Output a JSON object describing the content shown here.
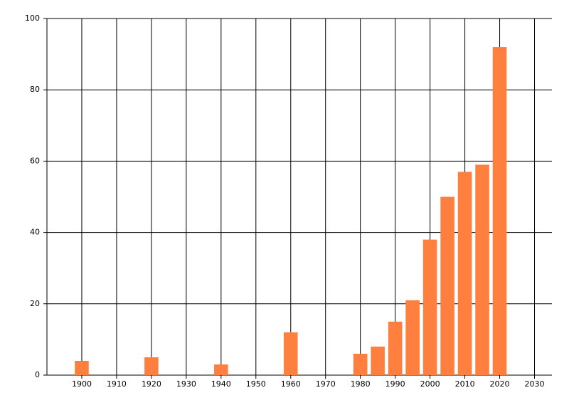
{
  "chart_data": {
    "type": "bar",
    "x": [
      1900,
      1920,
      1940,
      1960,
      1980,
      1985,
      1990,
      1995,
      2000,
      2005,
      2010,
      2015,
      2020
    ],
    "values": [
      4,
      5,
      3,
      12,
      6,
      8,
      15,
      21,
      38,
      50,
      57,
      59,
      92
    ],
    "color": "#ff7f3f",
    "xlim": [
      1890,
      2035
    ],
    "xticks": [
      1900,
      1910,
      1920,
      1930,
      1940,
      1950,
      1960,
      1970,
      1980,
      1990,
      2000,
      2010,
      2020,
      2030
    ],
    "ylim": [
      0,
      100
    ],
    "yticks": [
      0,
      20,
      40,
      60,
      80,
      100
    ],
    "grid": true
  }
}
